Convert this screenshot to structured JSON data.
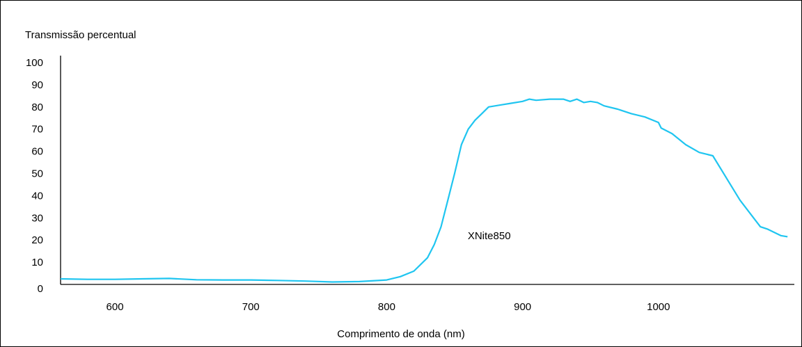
{
  "chart_data": {
    "type": "line",
    "title": "",
    "ylabel": "Transmissão percentual",
    "xlabel": "Comprimento de onda (nm)",
    "xlim": [
      560,
      1100
    ],
    "ylim": [
      0,
      100
    ],
    "xticks": [
      600,
      700,
      800,
      900,
      1000
    ],
    "yticks": [
      0,
      10,
      20,
      30,
      40,
      50,
      60,
      70,
      80,
      90,
      100
    ],
    "grid": false,
    "series": [
      {
        "color": "#1fc5f0",
        "x": [
          560,
          580,
          600,
          620,
          640,
          660,
          680,
          700,
          720,
          740,
          760,
          780,
          800,
          810,
          820,
          830,
          835,
          840,
          845,
          850,
          855,
          860,
          865,
          870,
          875,
          880,
          885,
          890,
          900,
          905,
          910,
          920,
          930,
          935,
          940,
          945,
          950,
          955,
          960,
          970,
          980,
          990,
          1000,
          1002,
          1010,
          1020,
          1030,
          1040,
          1050,
          1060,
          1070,
          1075,
          1080,
          1090,
          1095
        ],
        "y": [
          2.5,
          2.3,
          2.3,
          2.5,
          2.7,
          2.1,
          2.0,
          2.0,
          1.8,
          1.5,
          1.1,
          1.3,
          2.0,
          3.5,
          6.0,
          12.0,
          18.0,
          26.0,
          38.0,
          50.0,
          63.0,
          70.0,
          74.0,
          77.0,
          80.0,
          80.5,
          81.0,
          81.5,
          82.5,
          83.5,
          83.0,
          83.5,
          83.5,
          82.5,
          83.5,
          82.0,
          82.5,
          82.0,
          80.5,
          79.0,
          77.0,
          75.5,
          73.0,
          70.5,
          68.0,
          63.0,
          59.5,
          58.0,
          48.0,
          38.0,
          30.0,
          26.0,
          25.0,
          22.0,
          21.5
        ]
      }
    ],
    "annotations": [
      {
        "text": "XNite850",
        "x": 875,
        "y": 22
      }
    ]
  }
}
